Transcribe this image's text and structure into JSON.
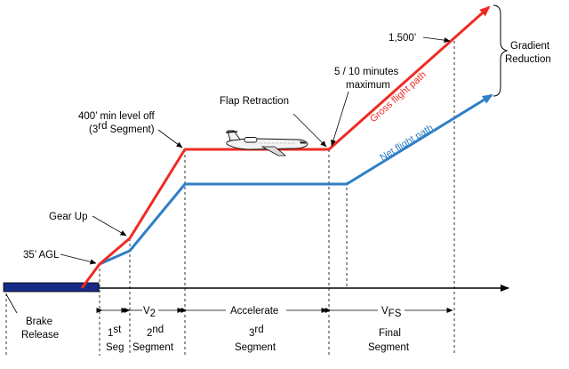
{
  "colors": {
    "gross_path": "#ee2b24",
    "net_path": "#2e7fc6",
    "runway": "#172a86",
    "ink": "#000000"
  },
  "labels": {
    "brake_release_line1": "Brake",
    "brake_release_line2": "Release",
    "agl_35": "35’ AGL",
    "gear_up": "Gear Up",
    "level_off_line1": "400’ min level off",
    "level_off_line2_pre": "(3",
    "level_off_line2_sup": "rd",
    "level_off_line2_post": " Segment)",
    "flap_retraction": "Flap Retraction",
    "minutes_line1": "5 / 10 minutes",
    "minutes_line2": "maximum",
    "altitude_1500": "1,500’",
    "gradient_line1": "Gradient",
    "gradient_line2": "Reduction",
    "gross_flight_path": "Gross flight path",
    "net_flight_path": "Net flight path"
  },
  "speeds": {
    "v2_main": "V",
    "v2_sub": "2",
    "accelerate": "Accelerate",
    "vfs_main": "V",
    "vfs_sub": "FS"
  },
  "segments": {
    "first_line1_main": "1",
    "first_line1_sup": "st",
    "first_line2": "Seg",
    "second_line1_main": "2",
    "second_line1_sup": "nd",
    "second_line2": "Segment",
    "third_line1_main": "3",
    "third_line1_sup": "rd",
    "third_line2": "Segment",
    "final_line1": "Final",
    "final_line2": "Segment"
  },
  "icons": {
    "aircraft": "regional-jet-icon"
  }
}
